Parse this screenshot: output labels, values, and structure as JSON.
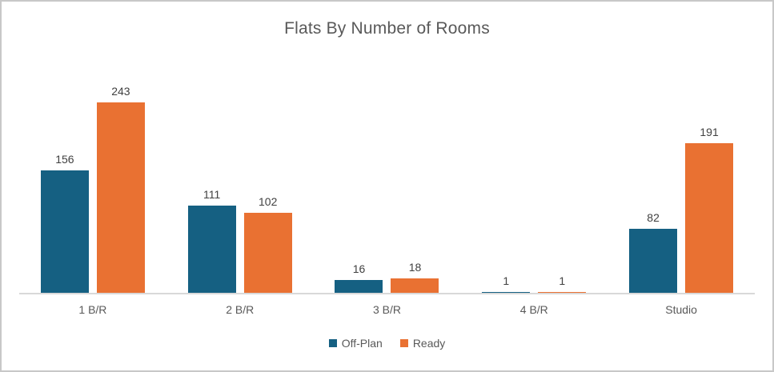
{
  "chart_data": {
    "type": "bar",
    "title": "Flats By Number of Rooms",
    "categories": [
      "1 B/R",
      "2 B/R",
      "3 B/R",
      "4 B/R",
      "Studio"
    ],
    "series": [
      {
        "name": "Off-Plan",
        "color": "#156082",
        "values": [
          156,
          111,
          16,
          1,
          82
        ]
      },
      {
        "name": "Ready",
        "color": "#E97132",
        "values": [
          243,
          102,
          18,
          1,
          191
        ]
      }
    ],
    "xlabel": "",
    "ylabel": "",
    "ylim": [
      0,
      300
    ],
    "grid": false,
    "value_labels": true,
    "legend_position": "bottom"
  },
  "colors": {
    "title_text": "#595959",
    "data_label_text": "#404040",
    "axis_line": "#D9D9D9",
    "chart_border": "#C8C8C8"
  }
}
